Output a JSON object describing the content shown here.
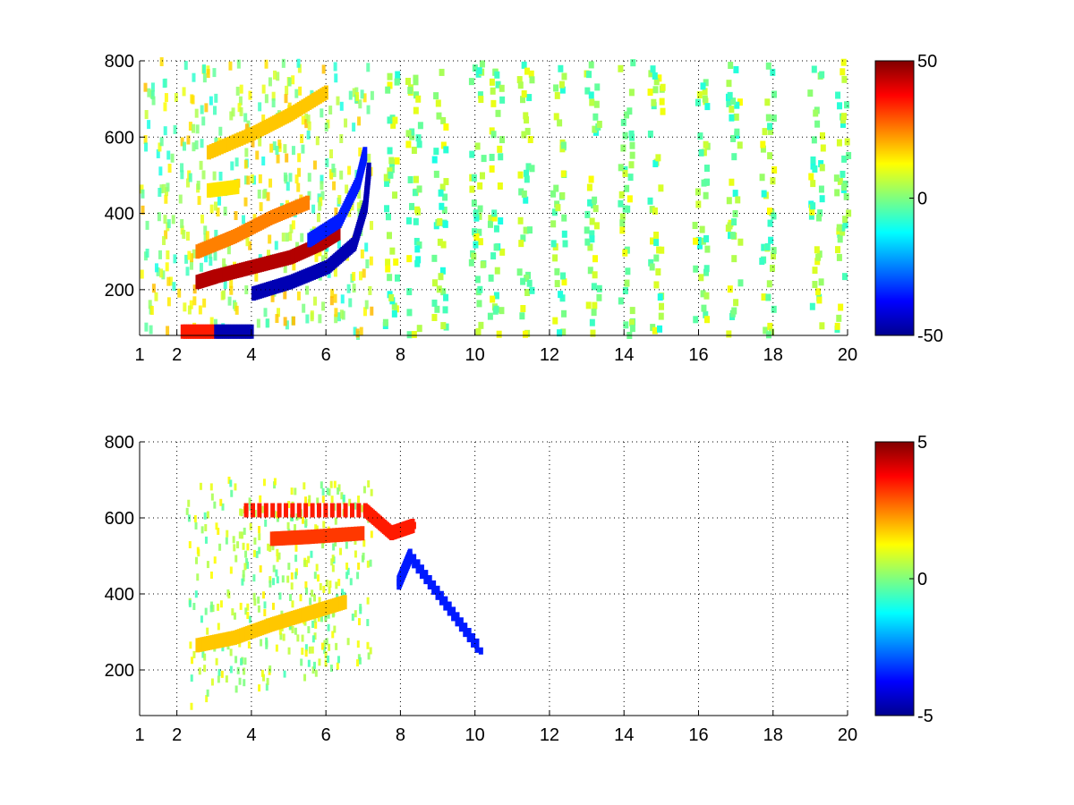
{
  "chart_data": [
    {
      "type": "heatmap",
      "title": "",
      "xlabel": "",
      "ylabel": "",
      "xlim": [
        1,
        20
      ],
      "ylim": [
        80,
        800
      ],
      "x_ticks": [
        1,
        2,
        4,
        6,
        8,
        10,
        12,
        14,
        16,
        18,
        20
      ],
      "x_tick_labels": [
        "1",
        "2",
        "4",
        "6",
        "8",
        "10",
        "12",
        "14",
        "16",
        "18",
        "20"
      ],
      "y_ticks": [
        200,
        400,
        600,
        800
      ],
      "y_tick_labels": [
        "200",
        "400",
        "600",
        "800"
      ],
      "grid": true,
      "colormap": "jet",
      "clim": [
        -50,
        50
      ],
      "colorbar_ticks": [
        50,
        0,
        -50
      ],
      "colorbar_tick_labels": [
        "50",
        "0",
        "-50"
      ],
      "features": [
        {
          "name": "red band",
          "value": 45,
          "points": [
            [
              2.5,
              220
            ],
            [
              3,
              235
            ],
            [
              4,
              260
            ],
            [
              5,
              285
            ],
            [
              5.8,
              320
            ],
            [
              6.3,
              350
            ]
          ]
        },
        {
          "name": "blue band",
          "value": -45,
          "points": [
            [
              4,
              190
            ],
            [
              5,
              220
            ],
            [
              6,
              260
            ],
            [
              6.7,
              320
            ],
            [
              7,
              420
            ],
            [
              7.1,
              520
            ]
          ]
        },
        {
          "name": "blue band upper",
          "value": -35,
          "points": [
            [
              5.5,
              330
            ],
            [
              6.3,
              380
            ],
            [
              6.8,
              480
            ],
            [
              7,
              560
            ]
          ]
        },
        {
          "name": "orange band",
          "value": 25,
          "points": [
            [
              2.5,
              300
            ],
            [
              3.5,
              340
            ],
            [
              4.5,
              390
            ],
            [
              5.5,
              430
            ]
          ]
        },
        {
          "name": "orange band upper",
          "value": 18,
          "points": [
            [
              2.8,
              560
            ],
            [
              4,
              610
            ],
            [
              5,
              660
            ],
            [
              6,
              720
            ]
          ]
        },
        {
          "name": "yellow streak",
          "value": 15,
          "points": [
            [
              2.8,
              460
            ],
            [
              3.6,
              470
            ]
          ]
        },
        {
          "name": "red low band",
          "value": 35,
          "points": [
            [
              2.1,
              90
            ],
            [
              3,
              90
            ]
          ]
        },
        {
          "name": "blue low band",
          "value": -45,
          "points": [
            [
              3,
              90
            ],
            [
              4,
              90
            ]
          ]
        }
      ],
      "noise_columns": [
        7.7,
        8.3,
        9,
        10,
        10.5,
        11.3,
        12.2,
        13.1,
        14,
        14.8,
        16,
        16.9,
        17.8,
        19.1,
        19.8
      ]
    },
    {
      "type": "heatmap",
      "title": "",
      "xlabel": "",
      "ylabel": "",
      "xlim": [
        1,
        20
      ],
      "ylim": [
        80,
        800
      ],
      "x_ticks": [
        1,
        2,
        4,
        6,
        8,
        10,
        12,
        14,
        16,
        18,
        20
      ],
      "x_tick_labels": [
        "1",
        "2",
        "4",
        "6",
        "8",
        "10",
        "12",
        "14",
        "16",
        "18",
        "20"
      ],
      "y_ticks": [
        200,
        400,
        600,
        800
      ],
      "y_tick_labels": [
        "200",
        "400",
        "600",
        "800"
      ],
      "grid": true,
      "colormap": "jet",
      "clim": [
        -5,
        5
      ],
      "colorbar_ticks": [
        5,
        0,
        -5
      ],
      "colorbar_tick_labels": [
        "5",
        "0",
        "-5"
      ],
      "features": [
        {
          "name": "yellow band",
          "value": 1.8,
          "points": [
            [
              2.5,
              265
            ],
            [
              3.5,
              285
            ],
            [
              4.5,
              320
            ],
            [
              5.5,
              350
            ],
            [
              6.5,
              380
            ]
          ]
        },
        {
          "name": "orange streak",
          "value": 3.2,
          "points": [
            [
              4.5,
              545
            ],
            [
              5.5,
              550
            ],
            [
              7,
              560
            ]
          ]
        },
        {
          "name": "orange dots",
          "value": 3.5,
          "points": [
            [
              3.8,
              620
            ],
            [
              7,
              620
            ],
            [
              7.7,
              560
            ],
            [
              8.3,
              580
            ]
          ]
        },
        {
          "name": "blue dots",
          "value": -3.5,
          "points": [
            [
              7.9,
              430
            ],
            [
              8.2,
              500
            ],
            [
              10.1,
              250
            ]
          ]
        }
      ]
    }
  ]
}
